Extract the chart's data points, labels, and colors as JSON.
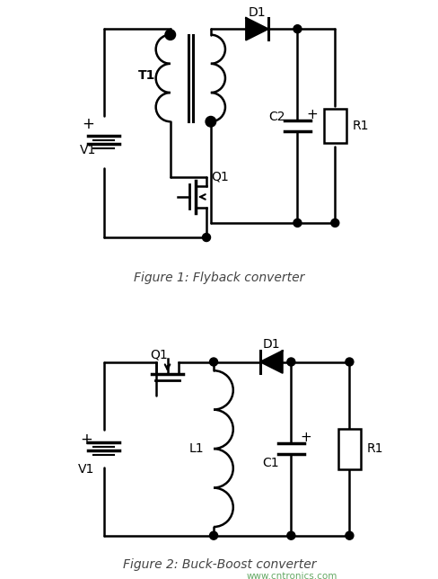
{
  "fig_width": 4.89,
  "fig_height": 6.44,
  "dpi": 100,
  "bg_color": "#ffffff",
  "line_color": "#000000",
  "line_width": 1.5,
  "fig1_caption": "Figure 1: Flyback converter",
  "fig2_caption": "Figure 2: Buck-Boost converter",
  "watermark": "www.cntronics.com"
}
